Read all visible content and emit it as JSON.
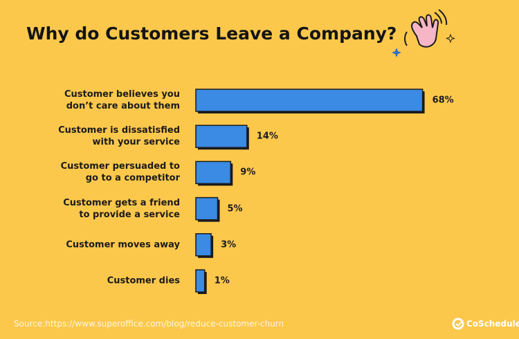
{
  "chart_data": {
    "type": "hbar",
    "title": "Why do Customers Leave a Company?",
    "categories": [
      "Customer believes you\ndon’t care about them",
      "Customer is dissatisfied\nwith your service",
      "Customer persuaded to\ngo to a competitor",
      "Customer gets a friend\nto provide a service",
      "Customer moves away",
      "Customer dies"
    ],
    "values": [
      68,
      14,
      9,
      5,
      3,
      1
    ],
    "value_labels": [
      "68%",
      "14%",
      "9%",
      "5%",
      "3%",
      "1%"
    ],
    "color": "#3b8ae3",
    "source": "Source:https://www.superoffice.com/blog/reduce-customer-churn",
    "brand": "CoSchedule"
  }
}
